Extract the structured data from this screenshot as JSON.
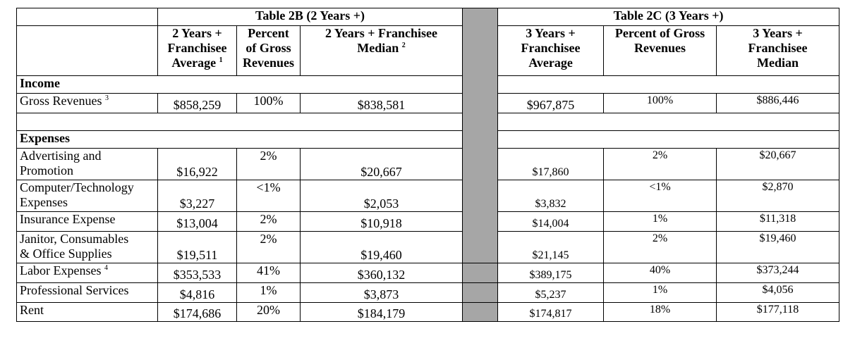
{
  "table": {
    "group_2b": "Table 2B (2 Years +)",
    "group_2c": "Table 2C (3 Years +)",
    "headers": {
      "h2b_avg": [
        "2 Years +",
        "Franchisee",
        "Average"
      ],
      "h2b_avg_sup": "1",
      "h2b_pct": [
        "Percent",
        "of Gross",
        "Revenues"
      ],
      "h2b_med": [
        "2 Years + Franchisee",
        "Median"
      ],
      "h2b_med_sup": "2",
      "h2c_avg": [
        "3 Years +",
        "Franchisee",
        "Average"
      ],
      "h2c_pct": [
        "Percent of Gross",
        "Revenues"
      ],
      "h2c_med": [
        "3 Years +",
        "Franchisee",
        "Median"
      ]
    },
    "income_label": "Income",
    "gross": {
      "label": "Gross Revenues",
      "sup": "3",
      "avg2": "$858,259",
      "pct2": "100%",
      "med2": "$838,581",
      "avg3": "$967,875",
      "pct3": "100%",
      "med3": "$886,446"
    },
    "expenses_label": "Expenses",
    "rows": [
      {
        "label": [
          "Advertising and",
          "Promotion"
        ],
        "avg2": "$16,922",
        "pct2": "2%",
        "med2": "$20,667",
        "avg3": "$17,860",
        "pct3": "2%",
        "med3": "$20,667"
      },
      {
        "label": [
          "Computer/Technology",
          "Expenses"
        ],
        "avg2": "$3,227",
        "pct2": "<1%",
        "med2": "$2,053",
        "avg3": "$3,832",
        "pct3": "<1%",
        "med3": "$2,870"
      },
      {
        "label": [
          "Insurance Expense"
        ],
        "avg2": "$13,004",
        "pct2": "2%",
        "med2": "$10,918",
        "avg3": "$14,004",
        "pct3": "1%",
        "med3": "$11,318"
      },
      {
        "label": [
          "Janitor, Consumables",
          "& Office Supplies"
        ],
        "avg2": "$19,511",
        "pct2": "2%",
        "med2": "$19,460",
        "avg3": "$21,145",
        "pct3": "2%",
        "med3": "$19,460"
      },
      {
        "label": [
          "Labor Expenses"
        ],
        "sup": "4",
        "avg2": "$353,533",
        "pct2": "41%",
        "med2": "$360,132",
        "avg3": "$389,175",
        "pct3": "40%",
        "med3": "$373,244"
      },
      {
        "label": [
          "Professional Services"
        ],
        "avg2": "$4,816",
        "pct2": "1%",
        "med2": "$3,873",
        "avg3": "$5,237",
        "pct3": "1%",
        "med3": "$4,056"
      },
      {
        "label": [
          "Rent"
        ],
        "avg2": "$174,686",
        "pct2": "20%",
        "med2": "$184,179",
        "avg3": "$174,817",
        "pct3": "18%",
        "med3": "$177,118"
      }
    ]
  }
}
